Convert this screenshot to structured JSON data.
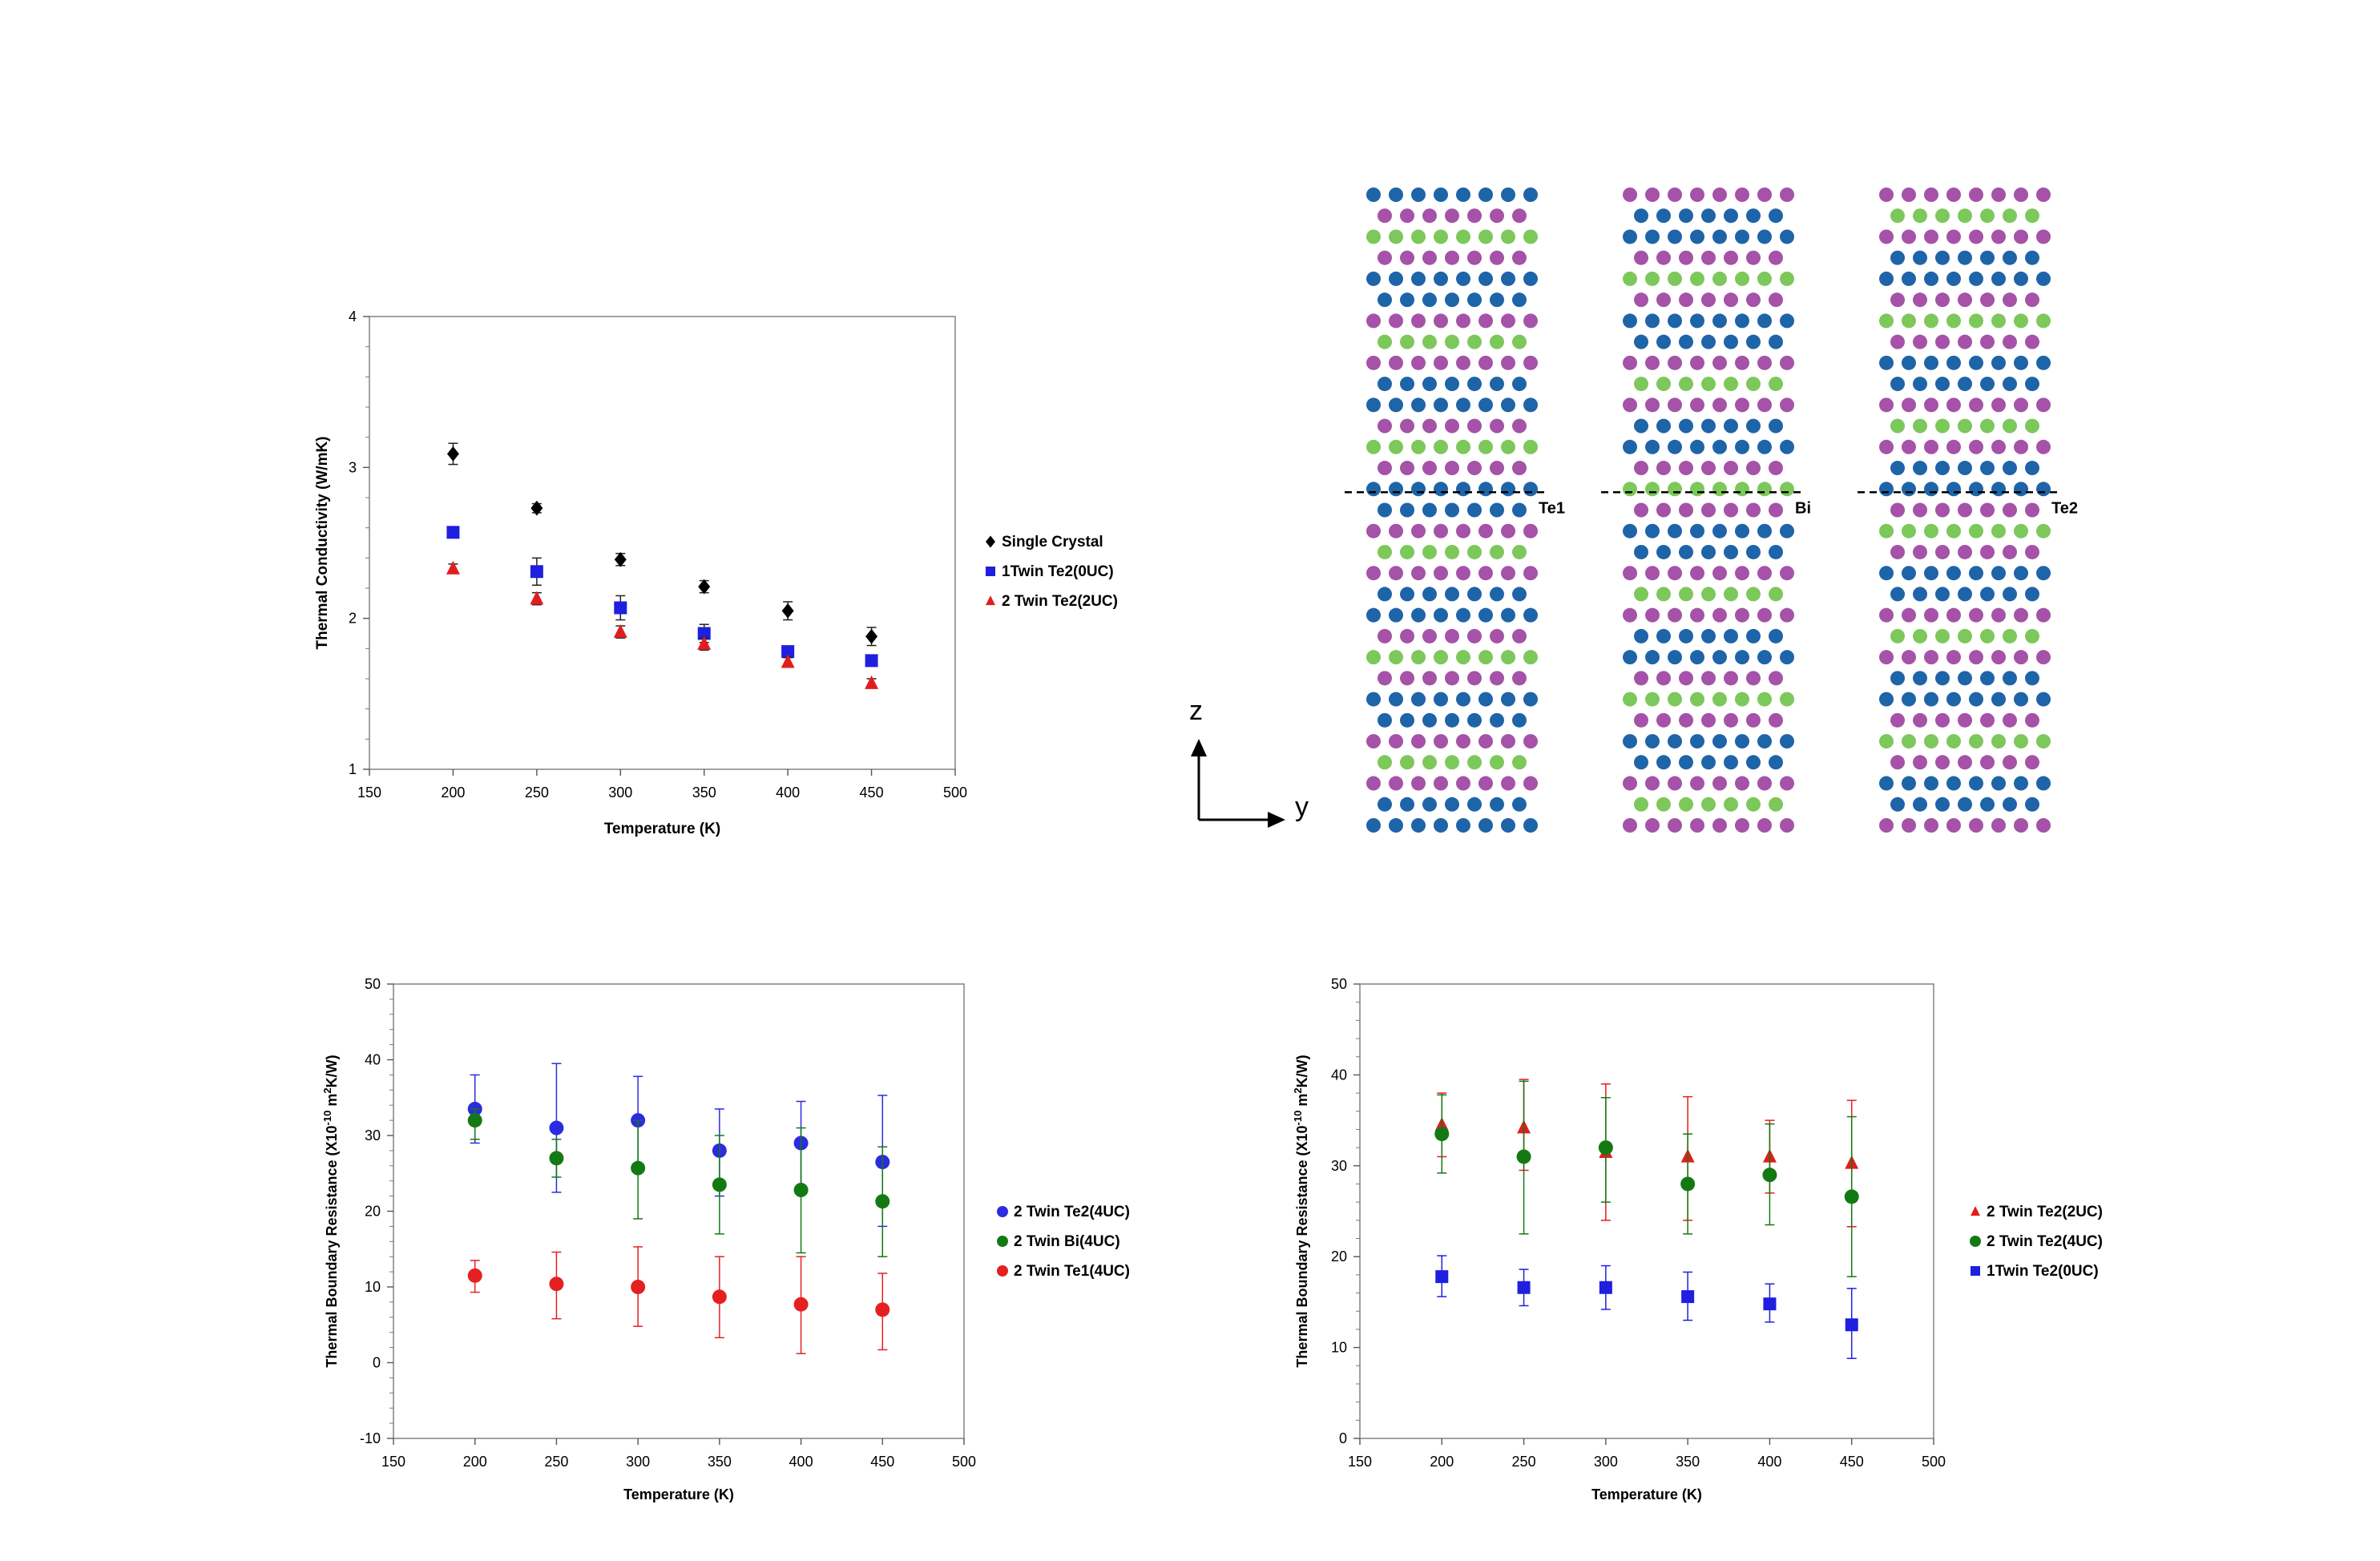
{
  "chart_data": [
    {
      "id": "kappa",
      "type": "scatter",
      "xlabel": "Temperature (K)",
      "ylabel": "Thermal Conductivity (W/mK)",
      "xlim": [
        150,
        500
      ],
      "ylim": [
        1,
        4
      ],
      "xticks": [
        150,
        200,
        250,
        300,
        350,
        400,
        450,
        500
      ],
      "yticks": [
        1,
        2,
        3,
        4
      ],
      "legend_position": "right",
      "series": [
        {
          "name": "Single Crystal",
          "marker": "diamond",
          "color": "#000000",
          "x": [
            200,
            250,
            300,
            350,
            400,
            450
          ],
          "y": [
            3.09,
            2.73,
            2.39,
            2.21,
            2.05,
            1.88
          ],
          "err": [
            0.07,
            0.03,
            0.04,
            0.04,
            0.06,
            0.06
          ]
        },
        {
          "name": "1Twin Te2(0UC)",
          "marker": "square",
          "color": "#1f1fe0",
          "x": [
            200,
            250,
            300,
            350,
            400,
            450
          ],
          "y": [
            2.57,
            2.31,
            2.07,
            1.9,
            1.78,
            1.72
          ],
          "err": [
            0.02,
            0.09,
            0.08,
            0.06,
            0.03,
            0.03
          ]
        },
        {
          "name": "2 Twin Te2(2UC)",
          "marker": "triangle",
          "color": "#e01e1e",
          "x": [
            200,
            250,
            300,
            350,
            400,
            450
          ],
          "y": [
            2.33,
            2.13,
            1.91,
            1.83,
            1.71,
            1.57
          ],
          "err": [
            0.03,
            0.04,
            0.04,
            0.04,
            0.03,
            0.03
          ]
        }
      ]
    },
    {
      "id": "tbr-left",
      "type": "scatter",
      "xlabel": "Temperature (K)",
      "ylabel": "Thermal Boundary Resistance (X10",
      "ylabel_sup": "-10",
      "ylabel_mid": "  m",
      "ylabel_sup2": "2",
      "ylabel_end": "K/W)",
      "xlim": [
        150,
        500
      ],
      "ylim": [
        -10,
        50
      ],
      "xticks": [
        150,
        200,
        250,
        300,
        350,
        400,
        450,
        500
      ],
      "yticks": [
        -10,
        0,
        10,
        20,
        30,
        40,
        50
      ],
      "legend_position": "right",
      "series": [
        {
          "name": "2 Twin Te2(4UC)",
          "marker": "circle",
          "color": "#2b2be0",
          "x": [
            200,
            250,
            300,
            350,
            400,
            450
          ],
          "y": [
            33.5,
            31,
            32,
            28,
            29,
            26.5
          ],
          "lo": [
            29,
            22.5,
            25.5,
            22,
            22.5,
            18
          ],
          "hi": [
            38,
            39.5,
            37.8,
            33.5,
            34.5,
            35.3
          ]
        },
        {
          "name": "2 Twin Bi(4UC)",
          "marker": "circle",
          "color": "#137a13",
          "x": [
            200,
            250,
            300,
            350,
            400,
            450
          ],
          "y": [
            32,
            27,
            25.7,
            23.5,
            22.8,
            21.3
          ],
          "lo": [
            29.5,
            24.5,
            19,
            17,
            14.5,
            14
          ],
          "hi": [
            33.5,
            29.5,
            32,
            30,
            31,
            28.5
          ]
        },
        {
          "name": "2 Twin Te1(4UC)",
          "marker": "circle",
          "color": "#e52020",
          "x": [
            200,
            250,
            300,
            350,
            400,
            450
          ],
          "y": [
            11.5,
            10.4,
            10,
            8.7,
            7.7,
            7
          ],
          "lo": [
            9.3,
            5.8,
            4.8,
            3.3,
            1.2,
            1.7
          ],
          "hi": [
            13.5,
            14.6,
            15.3,
            14,
            14,
            11.8
          ]
        }
      ]
    },
    {
      "id": "tbr-right",
      "type": "scatter",
      "xlabel": "Temperature (K)",
      "ylabel": "Thermal Boundary Resistance (X10",
      "ylabel_sup": "-10",
      "ylabel_mid": "  m",
      "ylabel_sup2": "2",
      "ylabel_end": "K/W)",
      "xlim": [
        150,
        500
      ],
      "ylim": [
        0,
        50
      ],
      "xticks": [
        150,
        200,
        250,
        300,
        350,
        400,
        450,
        500
      ],
      "yticks": [
        0,
        10,
        20,
        30,
        40,
        50
      ],
      "legend_position": "right",
      "series": [
        {
          "name": "2 Twin Te2(2UC)",
          "marker": "triangle",
          "color": "#e01e1e",
          "x": [
            200,
            250,
            300,
            350,
            400,
            450
          ],
          "y": [
            34.5,
            34.2,
            31.5,
            31,
            31,
            30.3
          ],
          "lo": [
            31,
            29.5,
            24,
            24,
            27,
            23.3
          ],
          "hi": [
            38,
            39.5,
            39,
            37.6,
            35,
            37.2
          ]
        },
        {
          "name": "2 Twin Te2(4UC)",
          "marker": "circle",
          "color": "#137a13",
          "x": [
            200,
            250,
            300,
            350,
            400,
            450
          ],
          "y": [
            33.5,
            31,
            32,
            28,
            29,
            26.6
          ],
          "lo": [
            29.2,
            22.5,
            26,
            22.5,
            23.5,
            17.8
          ],
          "hi": [
            37.8,
            39.3,
            37.5,
            33.5,
            34.6,
            35.4
          ]
        },
        {
          "name": "1Twin Te2(0UC)",
          "marker": "square",
          "color": "#1f1fe0",
          "x": [
            200,
            250,
            300,
            350,
            400,
            450
          ],
          "y": [
            17.8,
            16.6,
            16.6,
            15.6,
            14.8,
            12.5
          ],
          "lo": [
            15.6,
            14.6,
            14.2,
            13,
            12.8,
            8.8
          ],
          "hi": [
            20.1,
            18.6,
            19,
            18.3,
            17,
            16.5
          ]
        }
      ]
    }
  ],
  "structure": {
    "axis_z": "z",
    "axis_y": "y",
    "labels": [
      "Te1",
      "Bi",
      "Te2"
    ],
    "colors": {
      "blue": "#1e64a8",
      "magenta": "#a552a8",
      "green": "#7cc85a"
    },
    "column_patterns": [
      "BBMGMB BMGMB BMGMB BMGBMGMB BMGMB BMGMB B",
      "GMB BMGMB BMGMB BMGMB GMB BMGMB BMGMB BMG",
      "MB BMGMB BMGMB BMGMB BGMB BMGMB BMGMB BMG"
    ]
  }
}
